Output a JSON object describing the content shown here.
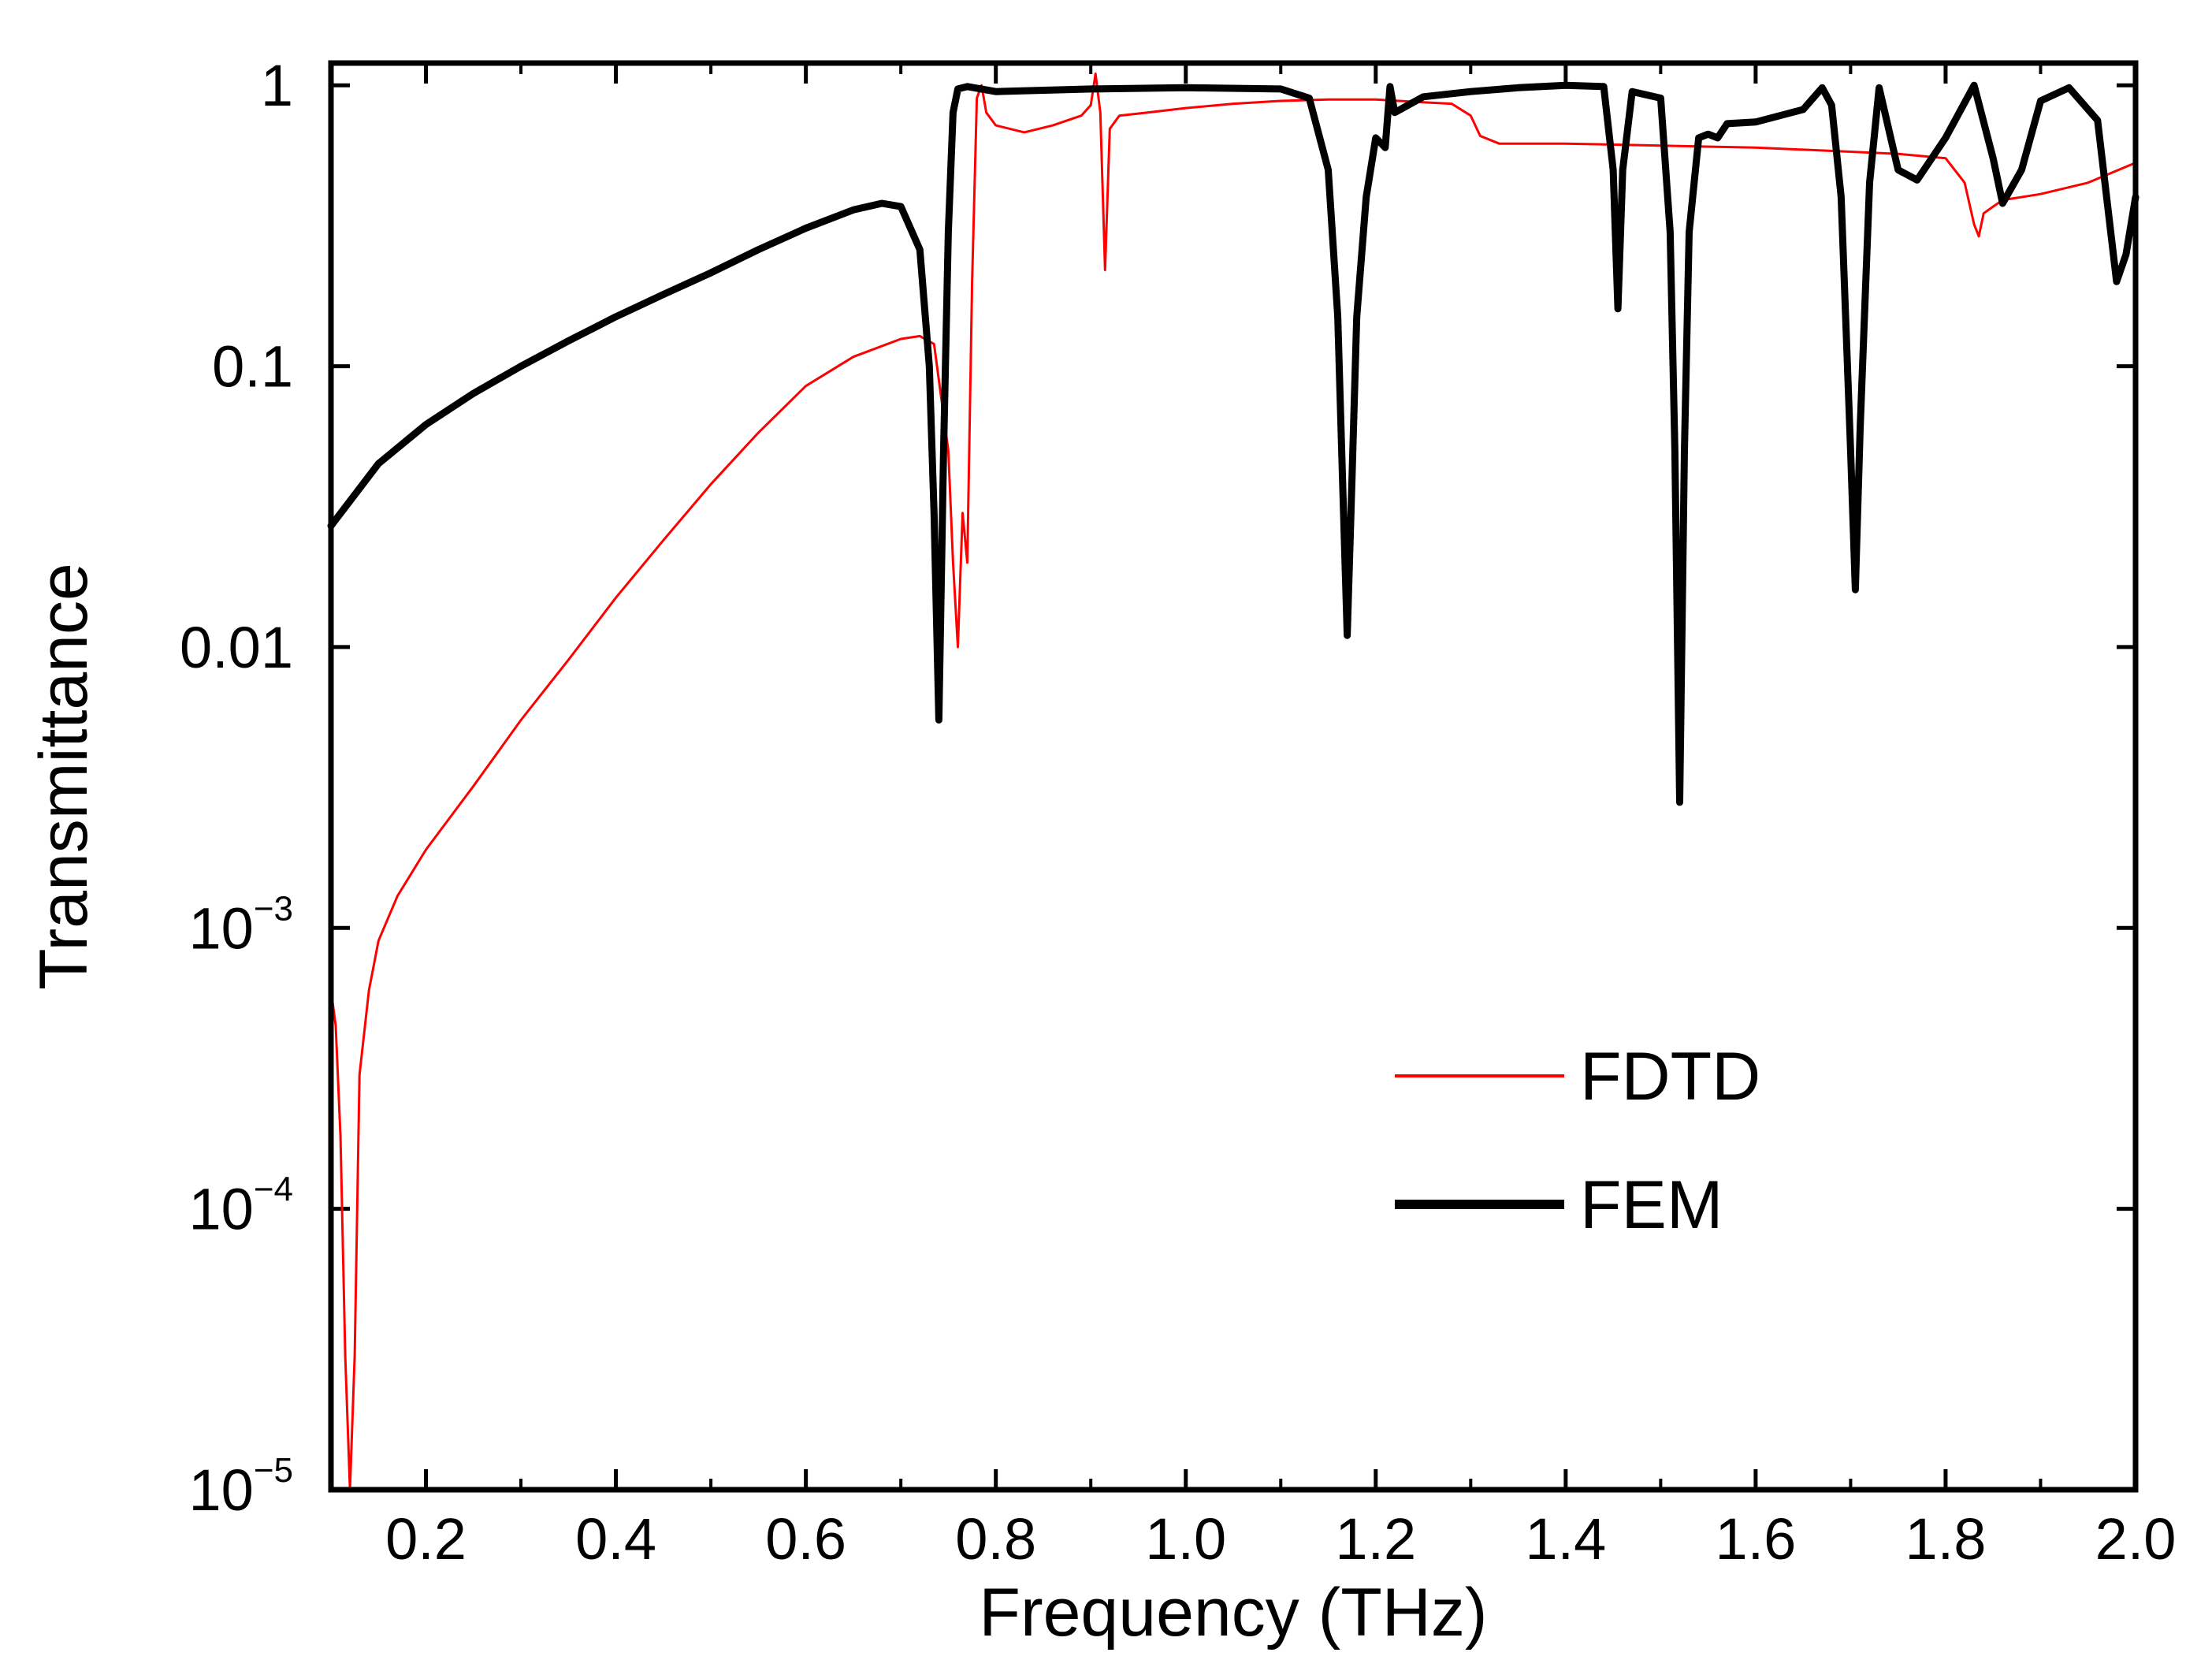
{
  "chart_data": {
    "type": "line",
    "title": "",
    "xlabel": "Frequency (THz)",
    "ylabel": "Transmittance",
    "xscale": "linear",
    "yscale": "log",
    "xlim": [
      0.1,
      2.0
    ],
    "ylim": [
      1e-05,
      1.2
    ],
    "x_ticks": [
      0.2,
      0.4,
      0.6,
      0.8,
      1.0,
      1.2,
      1.4,
      1.6,
      1.8,
      2.0
    ],
    "x_tick_labels": [
      "0.2",
      "0.4",
      "0.6",
      "0.8",
      "1.0",
      "1.2",
      "1.4",
      "1.6",
      "1.8",
      "2.0"
    ],
    "y_ticks": [
      {
        "value": 1,
        "base": "1",
        "exp": ""
      },
      {
        "value": 0.1,
        "base": "0.1",
        "exp": ""
      },
      {
        "value": 0.01,
        "base": "0.01",
        "exp": ""
      },
      {
        "value": 0.001,
        "base": "10",
        "exp": "−3"
      },
      {
        "value": 0.0001,
        "base": "10",
        "exp": "−4"
      },
      {
        "value": 1e-05,
        "base": "10",
        "exp": "−5"
      }
    ],
    "legend": {
      "position": "lower-right",
      "entries": [
        {
          "label": "FDTD",
          "color": "#ff0000",
          "style": "thin"
        },
        {
          "label": "FEM",
          "color": "#000000",
          "style": "thick"
        }
      ]
    },
    "series": [
      {
        "name": "FDTD",
        "color": "#ff0000",
        "points": [
          [
            0.1,
            0.0006
          ],
          [
            0.105,
            0.00045
          ],
          [
            0.11,
            0.00018
          ],
          [
            0.115,
            3e-05
          ],
          [
            0.12,
            1e-05
          ],
          [
            0.125,
            3e-05
          ],
          [
            0.13,
            0.0003
          ],
          [
            0.14,
            0.0006
          ],
          [
            0.15,
            0.0009
          ],
          [
            0.17,
            0.0013
          ],
          [
            0.2,
            0.0019
          ],
          [
            0.25,
            0.0032
          ],
          [
            0.3,
            0.0055
          ],
          [
            0.35,
            0.009
          ],
          [
            0.4,
            0.015
          ],
          [
            0.45,
            0.024
          ],
          [
            0.5,
            0.038
          ],
          [
            0.55,
            0.058
          ],
          [
            0.6,
            0.085
          ],
          [
            0.65,
            0.108
          ],
          [
            0.7,
            0.125
          ],
          [
            0.72,
            0.128
          ],
          [
            0.735,
            0.12
          ],
          [
            0.75,
            0.05
          ],
          [
            0.755,
            0.02
          ],
          [
            0.76,
            0.01
          ],
          [
            0.765,
            0.03
          ],
          [
            0.77,
            0.02
          ],
          [
            0.775,
            0.2
          ],
          [
            0.78,
            0.9
          ],
          [
            0.785,
            1.0
          ],
          [
            0.79,
            0.8
          ],
          [
            0.8,
            0.72
          ],
          [
            0.83,
            0.68
          ],
          [
            0.86,
            0.72
          ],
          [
            0.89,
            0.78
          ],
          [
            0.9,
            0.85
          ],
          [
            0.905,
            1.1
          ],
          [
            0.91,
            0.8
          ],
          [
            0.915,
            0.22
          ],
          [
            0.92,
            0.7
          ],
          [
            0.93,
            0.78
          ],
          [
            0.96,
            0.8
          ],
          [
            1.0,
            0.83
          ],
          [
            1.05,
            0.86
          ],
          [
            1.1,
            0.88
          ],
          [
            1.15,
            0.89
          ],
          [
            1.2,
            0.89
          ],
          [
            1.25,
            0.87
          ],
          [
            1.28,
            0.86
          ],
          [
            1.3,
            0.78
          ],
          [
            1.31,
            0.66
          ],
          [
            1.33,
            0.62
          ],
          [
            1.4,
            0.62
          ],
          [
            1.5,
            0.61
          ],
          [
            1.6,
            0.6
          ],
          [
            1.7,
            0.58
          ],
          [
            1.75,
            0.57
          ],
          [
            1.8,
            0.55
          ],
          [
            1.82,
            0.45
          ],
          [
            1.83,
            0.32
          ],
          [
            1.835,
            0.29
          ],
          [
            1.84,
            0.35
          ],
          [
            1.85,
            0.37
          ],
          [
            1.86,
            0.39
          ],
          [
            1.9,
            0.41
          ],
          [
            1.95,
            0.45
          ],
          [
            2.0,
            0.53
          ]
        ]
      },
      {
        "name": "FEM",
        "color": "#000000",
        "points": [
          [
            0.1,
            0.027
          ],
          [
            0.15,
            0.045
          ],
          [
            0.2,
            0.062
          ],
          [
            0.25,
            0.08
          ],
          [
            0.3,
            0.1
          ],
          [
            0.35,
            0.123
          ],
          [
            0.4,
            0.15
          ],
          [
            0.45,
            0.18
          ],
          [
            0.5,
            0.215
          ],
          [
            0.55,
            0.26
          ],
          [
            0.6,
            0.31
          ],
          [
            0.65,
            0.36
          ],
          [
            0.68,
            0.38
          ],
          [
            0.7,
            0.37
          ],
          [
            0.72,
            0.26
          ],
          [
            0.73,
            0.1
          ],
          [
            0.735,
            0.03
          ],
          [
            0.74,
            0.0055
          ],
          [
            0.745,
            0.05
          ],
          [
            0.75,
            0.3
          ],
          [
            0.755,
            0.8
          ],
          [
            0.76,
            0.97
          ],
          [
            0.77,
            0.99
          ],
          [
            0.8,
            0.95
          ],
          [
            0.9,
            0.97
          ],
          [
            1.0,
            0.98
          ],
          [
            1.1,
            0.97
          ],
          [
            1.13,
            0.9
          ],
          [
            1.15,
            0.5
          ],
          [
            1.16,
            0.15
          ],
          [
            1.165,
            0.04
          ],
          [
            1.17,
            0.011
          ],
          [
            1.175,
            0.04
          ],
          [
            1.18,
            0.15
          ],
          [
            1.19,
            0.4
          ],
          [
            1.2,
            0.65
          ],
          [
            1.21,
            0.6
          ],
          [
            1.215,
            0.99
          ],
          [
            1.22,
            0.8
          ],
          [
            1.25,
            0.91
          ],
          [
            1.3,
            0.95
          ],
          [
            1.35,
            0.98
          ],
          [
            1.4,
            1.0
          ],
          [
            1.44,
            0.99
          ],
          [
            1.45,
            0.5
          ],
          [
            1.455,
            0.16
          ],
          [
            1.46,
            0.5
          ],
          [
            1.47,
            0.95
          ],
          [
            1.5,
            0.9
          ],
          [
            1.51,
            0.3
          ],
          [
            1.515,
            0.05
          ],
          [
            1.52,
            0.0028
          ],
          [
            1.525,
            0.05
          ],
          [
            1.53,
            0.3
          ],
          [
            1.54,
            0.65
          ],
          [
            1.55,
            0.67
          ],
          [
            1.56,
            0.65
          ],
          [
            1.57,
            0.73
          ],
          [
            1.6,
            0.74
          ],
          [
            1.65,
            0.82
          ],
          [
            1.67,
            0.98
          ],
          [
            1.68,
            0.85
          ],
          [
            1.69,
            0.4
          ],
          [
            1.7,
            0.05
          ],
          [
            1.705,
            0.016
          ],
          [
            1.71,
            0.06
          ],
          [
            1.72,
            0.45
          ],
          [
            1.73,
            0.98
          ],
          [
            1.75,
            0.5
          ],
          [
            1.77,
            0.46
          ],
          [
            1.8,
            0.65
          ],
          [
            1.83,
            1.0
          ],
          [
            1.85,
            0.55
          ],
          [
            1.86,
            0.38
          ],
          [
            1.88,
            0.5
          ],
          [
            1.9,
            0.88
          ],
          [
            1.93,
            0.98
          ],
          [
            1.96,
            0.75
          ],
          [
            1.98,
            0.2
          ],
          [
            1.99,
            0.25
          ],
          [
            2.0,
            0.4
          ]
        ]
      }
    ]
  }
}
